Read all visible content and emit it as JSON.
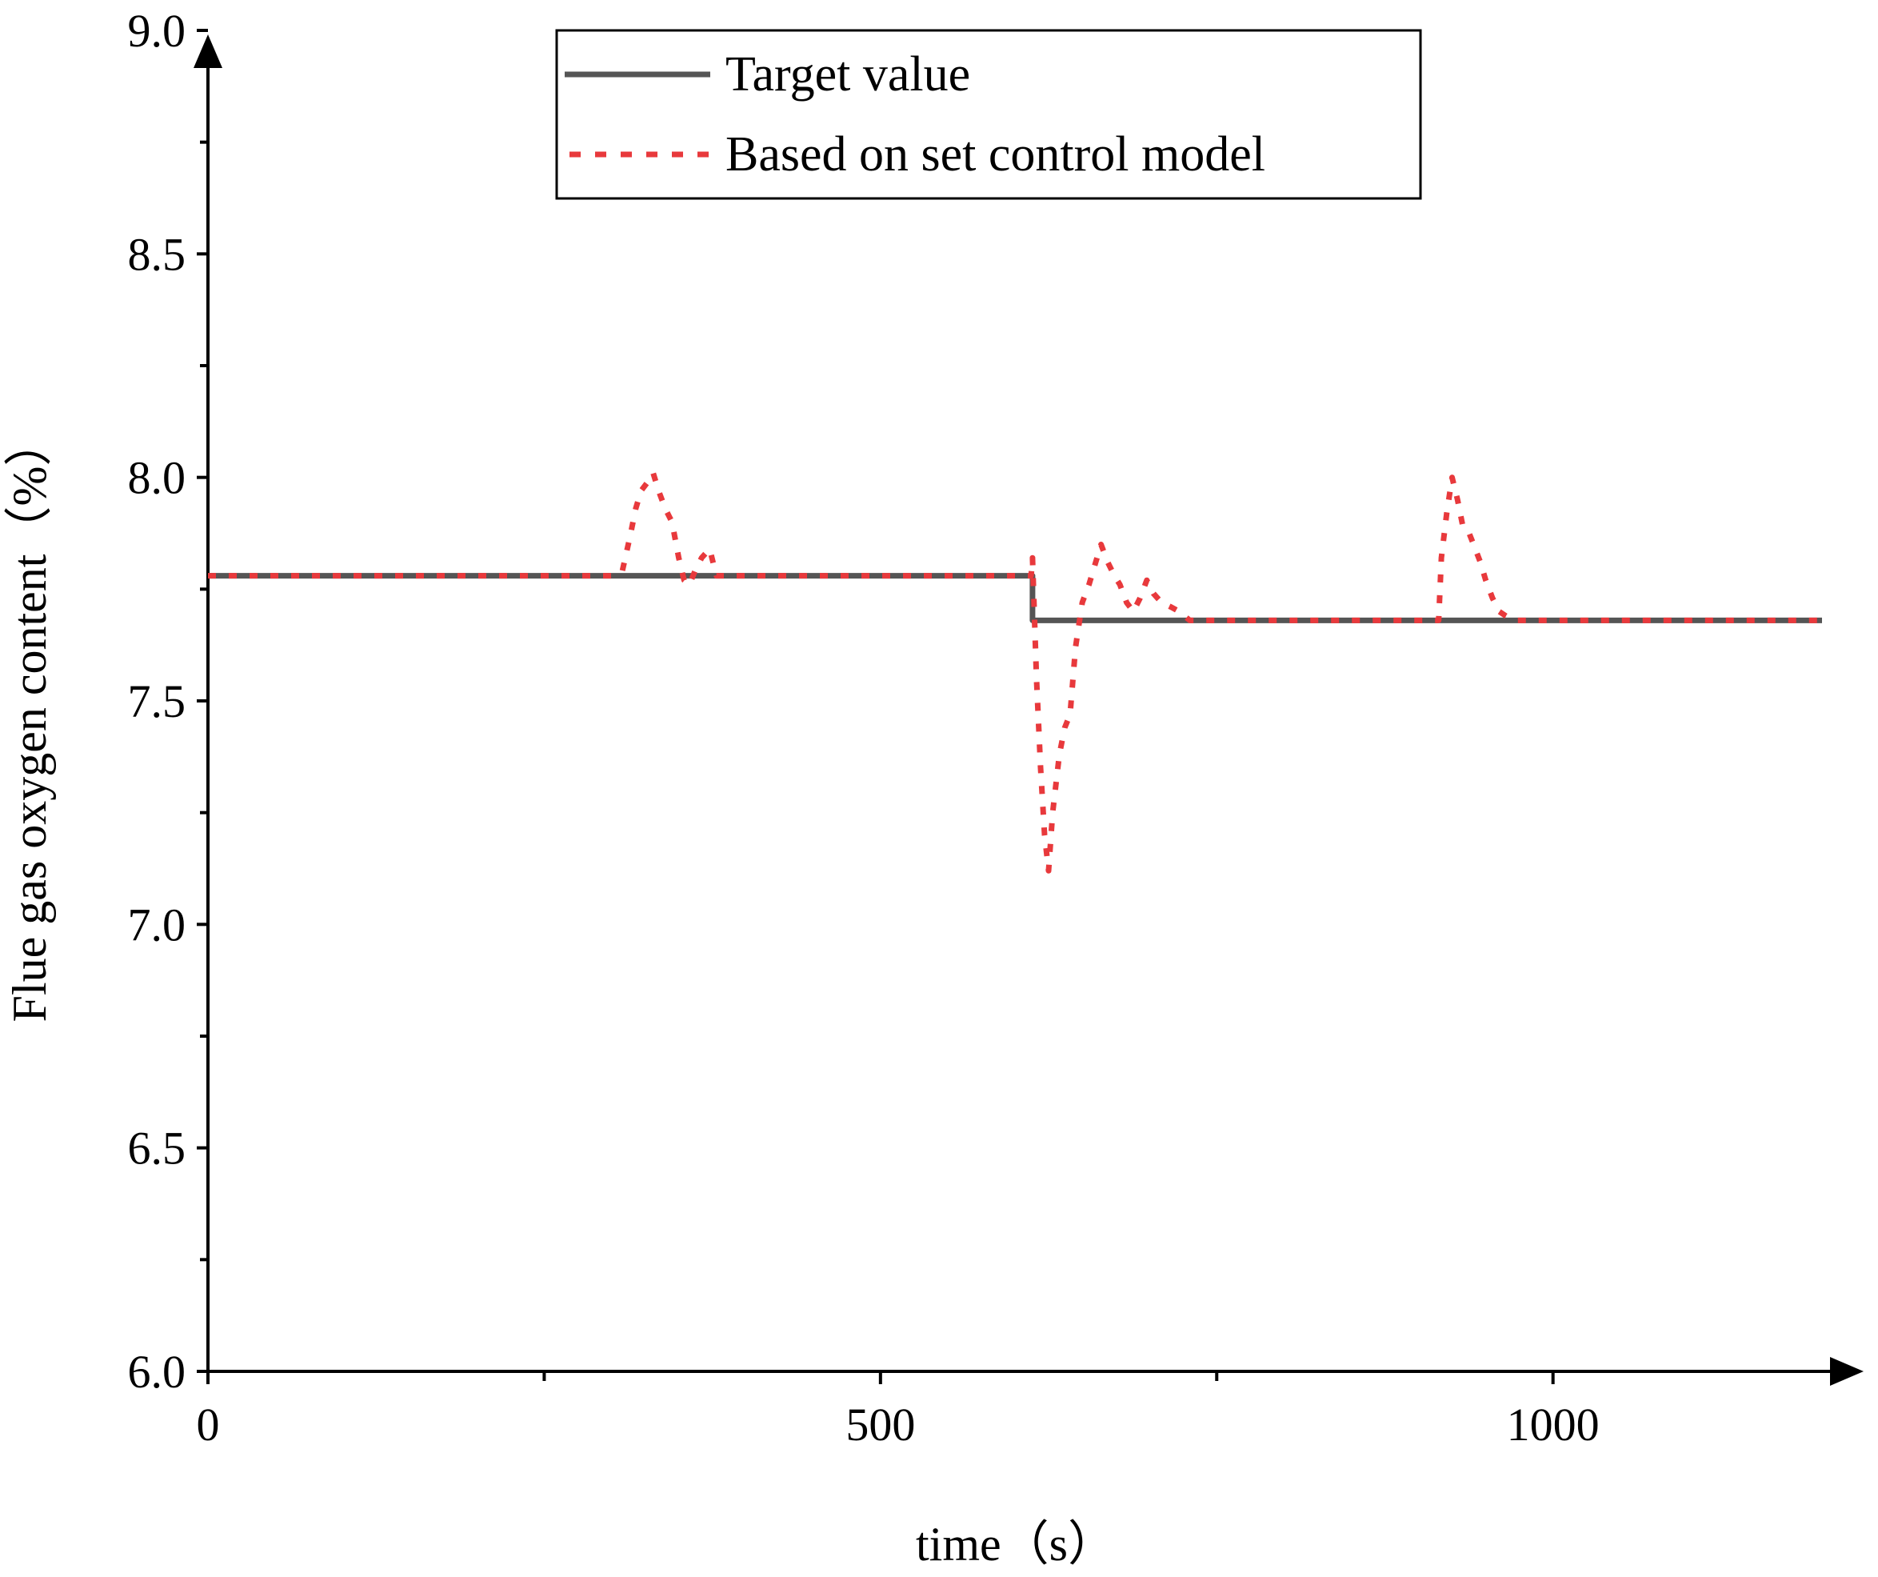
{
  "chart_data": {
    "type": "line",
    "xlabel": "time（s）",
    "ylabel": "Flue gas oxygen content（%）",
    "xlim": [
      0,
      1200
    ],
    "ylim": [
      6.0,
      9.0
    ],
    "x_ticks": [
      0,
      500,
      1000
    ],
    "x_tick_labels": [
      "0",
      "500",
      "1000"
    ],
    "x_minor_ticks": [
      250,
      750
    ],
    "y_ticks": [
      6.0,
      6.5,
      7.0,
      7.5,
      8.0,
      8.5,
      9.0
    ],
    "y_tick_labels": [
      "6.0",
      "6.5",
      "7.0",
      "7.5",
      "8.0",
      "8.5",
      "9.0"
    ],
    "y_minor_ticks": [
      6.25,
      6.75,
      7.25,
      7.75,
      8.25,
      8.75
    ],
    "grid": false,
    "legend_position": "top-center",
    "series": [
      {
        "name": "Target value",
        "color": "#555555",
        "style": "solid",
        "points": [
          [
            0,
            7.78
          ],
          [
            613,
            7.78
          ],
          [
            613,
            7.68
          ],
          [
            1200,
            7.68
          ]
        ]
      },
      {
        "name": "Based on set control model",
        "color": "#e8393c",
        "style": "dotted",
        "points": [
          [
            0,
            7.78
          ],
          [
            300,
            7.78
          ],
          [
            308,
            7.79
          ],
          [
            314,
            7.87
          ],
          [
            318,
            7.93
          ],
          [
            322,
            7.97
          ],
          [
            327,
            7.99
          ],
          [
            331,
            8.01
          ],
          [
            335,
            7.97
          ],
          [
            340,
            7.93
          ],
          [
            345,
            7.9
          ],
          [
            350,
            7.82
          ],
          [
            354,
            7.77
          ],
          [
            358,
            7.76
          ],
          [
            362,
            7.79
          ],
          [
            367,
            7.82
          ],
          [
            373,
            7.84
          ],
          [
            378,
            7.78
          ],
          [
            395,
            7.78
          ],
          [
            500,
            7.78
          ],
          [
            612,
            7.78
          ],
          [
            613,
            7.82
          ],
          [
            616,
            7.55
          ],
          [
            619,
            7.35
          ],
          [
            622,
            7.2
          ],
          [
            625,
            7.12
          ],
          [
            628,
            7.25
          ],
          [
            633,
            7.38
          ],
          [
            637,
            7.44
          ],
          [
            641,
            7.47
          ],
          [
            645,
            7.62
          ],
          [
            650,
            7.72
          ],
          [
            655,
            7.76
          ],
          [
            660,
            7.81
          ],
          [
            664,
            7.85
          ],
          [
            669,
            7.81
          ],
          [
            674,
            7.78
          ],
          [
            678,
            7.76
          ],
          [
            683,
            7.72
          ],
          [
            688,
            7.7
          ],
          [
            693,
            7.73
          ],
          [
            698,
            7.77
          ],
          [
            703,
            7.74
          ],
          [
            709,
            7.72
          ],
          [
            716,
            7.71
          ],
          [
            722,
            7.7
          ],
          [
            730,
            7.68
          ],
          [
            800,
            7.68
          ],
          [
            915,
            7.68
          ],
          [
            917,
            7.82
          ],
          [
            921,
            7.92
          ],
          [
            925,
            8.0
          ],
          [
            929,
            7.95
          ],
          [
            933,
            7.89
          ],
          [
            937,
            7.88
          ],
          [
            941,
            7.85
          ],
          [
            946,
            7.81
          ],
          [
            950,
            7.77
          ],
          [
            955,
            7.73
          ],
          [
            960,
            7.7
          ],
          [
            965,
            7.69
          ],
          [
            972,
            7.68
          ],
          [
            1100,
            7.68
          ],
          [
            1200,
            7.68
          ]
        ]
      }
    ]
  }
}
